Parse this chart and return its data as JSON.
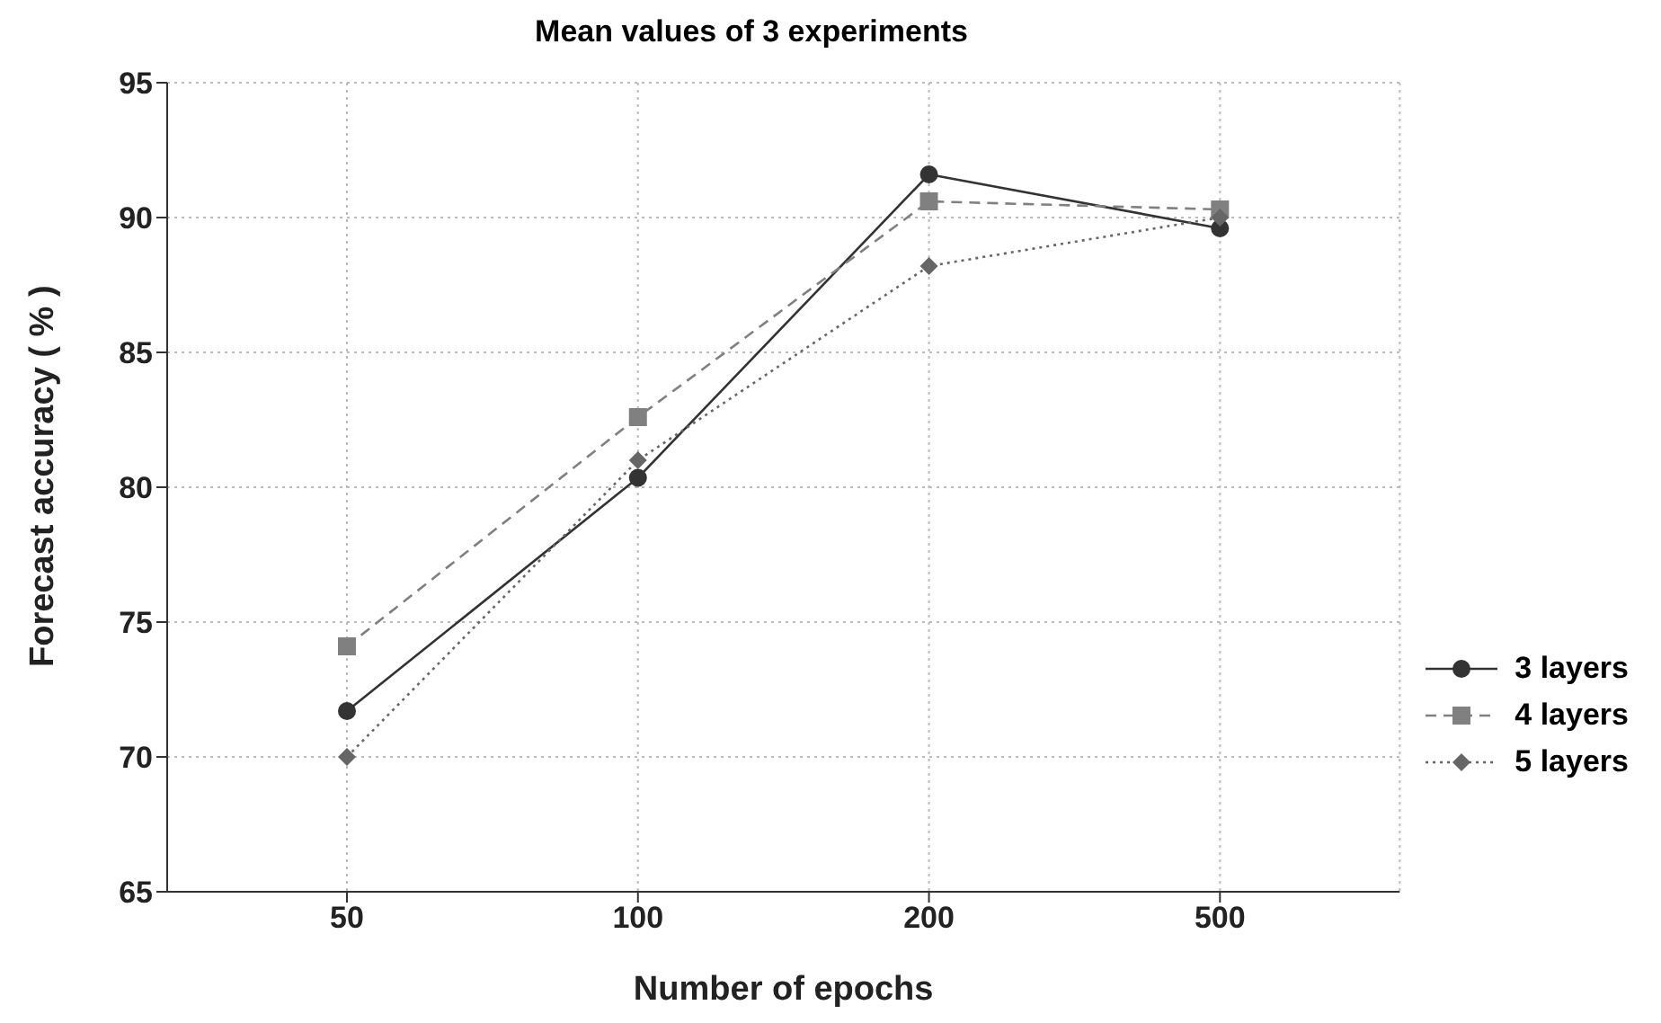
{
  "chart_data": {
    "type": "line",
    "title": "Mean values of 3 experiments",
    "xlabel": "Number of epochs",
    "ylabel": "Forecast accuracy ( % )",
    "categories": [
      "50",
      "100",
      "200",
      "500"
    ],
    "series": [
      {
        "name": "3 layers",
        "color": "#333333",
        "marker": "circle",
        "line_style": "solid",
        "values": [
          71.7,
          80.35,
          91.6,
          89.6
        ]
      },
      {
        "name": "4 layers",
        "color": "#808080",
        "marker": "square",
        "line_style": "dashed",
        "values": [
          74.1,
          82.6,
          90.6,
          90.3
        ]
      },
      {
        "name": "5 layers",
        "color": "#666666",
        "marker": "diamond",
        "line_style": "dotted",
        "values": [
          70.0,
          81.0,
          88.2,
          90.0
        ]
      }
    ],
    "ylim": [
      65,
      95
    ],
    "yticks": [
      65,
      70,
      75,
      80,
      85,
      90,
      95
    ],
    "grid": true,
    "legend": "right"
  }
}
